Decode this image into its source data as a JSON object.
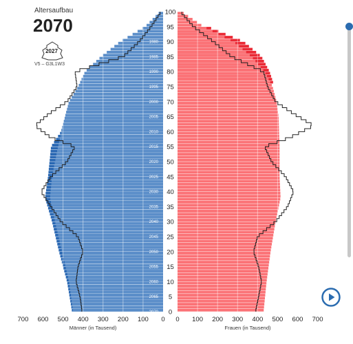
{
  "header": {
    "subtitle": "Altersaufbau",
    "year": "2070",
    "badge_year": "2027",
    "variant": "V5 – G3L1W3"
  },
  "colors": {
    "male": "#5b8ec9",
    "male_dark": "#2a68b3",
    "female": "#fb7276",
    "female_dark": "#ea2a35",
    "outline": "#222222",
    "accent": "#2b6cb0"
  },
  "controls": {
    "slider": "year-slider",
    "play": "play-icon"
  },
  "chart_data": {
    "type": "population-pyramid",
    "title": "Altersaufbau 2070",
    "left_axis_label": "Männer (in Tausend)",
    "right_axis_label": "Frauen (in Tausend)",
    "x_ticks": [
      700,
      600,
      500,
      400,
      300,
      200,
      100,
      0
    ],
    "x_max": 700,
    "age_ticks": [
      0,
      5,
      10,
      15,
      20,
      25,
      30,
      35,
      40,
      45,
      50,
      55,
      60,
      65,
      70,
      75,
      80,
      85,
      90,
      95,
      100
    ],
    "birth_year_labels": [
      {
        "age": 0,
        "label": "2070"
      },
      {
        "age": 5,
        "label": "2065"
      },
      {
        "age": 10,
        "label": "2060"
      },
      {
        "age": 15,
        "label": "2055"
      },
      {
        "age": 20,
        "label": "2050"
      },
      {
        "age": 25,
        "label": "2045"
      },
      {
        "age": 30,
        "label": "2040"
      },
      {
        "age": 35,
        "label": "2035"
      },
      {
        "age": 40,
        "label": "2030"
      },
      {
        "age": 45,
        "label": "2025"
      },
      {
        "age": 50,
        "label": "2020"
      },
      {
        "age": 55,
        "label": "2015"
      },
      {
        "age": 60,
        "label": "2010"
      },
      {
        "age": 65,
        "label": "2005"
      },
      {
        "age": 70,
        "label": "2000"
      },
      {
        "age": 75,
        "label": "1995"
      },
      {
        "age": 80,
        "label": "1990"
      },
      {
        "age": 85,
        "label": "1985"
      },
      {
        "age": 90,
        "label": "1980"
      }
    ],
    "male_profile": [
      [
        0,
        450
      ],
      [
        10,
        470
      ],
      [
        20,
        505
      ],
      [
        30,
        540
      ],
      [
        38,
        565
      ],
      [
        45,
        555
      ],
      [
        55,
        525
      ],
      [
        65,
        490
      ],
      [
        70,
        470
      ],
      [
        75,
        425
      ],
      [
        80,
        390
      ],
      [
        85,
        310
      ],
      [
        90,
        215
      ],
      [
        95,
        90
      ],
      [
        100,
        15
      ]
    ],
    "male_dark_profile": [
      [
        0,
        455
      ],
      [
        10,
        480
      ],
      [
        20,
        520
      ],
      [
        30,
        555
      ],
      [
        38,
        590
      ],
      [
        45,
        575
      ],
      [
        55,
        560
      ],
      [
        60,
        510
      ],
      [
        65,
        490
      ],
      [
        70,
        470
      ]
    ],
    "female_profile": [
      [
        0,
        430
      ],
      [
        10,
        445
      ],
      [
        20,
        465
      ],
      [
        30,
        490
      ],
      [
        38,
        515
      ],
      [
        45,
        510
      ],
      [
        55,
        510
      ],
      [
        65,
        505
      ],
      [
        70,
        495
      ],
      [
        75,
        475
      ],
      [
        80,
        435
      ],
      [
        85,
        370
      ],
      [
        90,
        280
      ],
      [
        95,
        130
      ],
      [
        100,
        20
      ]
    ],
    "female_dark_profile": [
      [
        76,
        480
      ],
      [
        80,
        460
      ],
      [
        85,
        420
      ],
      [
        90,
        330
      ],
      [
        95,
        150
      ]
    ],
    "male_outline_2027": [
      [
        0,
        405
      ],
      [
        5,
        415
      ],
      [
        10,
        435
      ],
      [
        15,
        425
      ],
      [
        20,
        400
      ],
      [
        25,
        425
      ],
      [
        30,
        510
      ],
      [
        35,
        560
      ],
      [
        40,
        610
      ],
      [
        45,
        560
      ],
      [
        50,
        480
      ],
      [
        55,
        440
      ],
      [
        58,
        560
      ],
      [
        62,
        640
      ],
      [
        66,
        570
      ],
      [
        70,
        480
      ],
      [
        75,
        430
      ],
      [
        80,
        440
      ],
      [
        85,
        200
      ],
      [
        90,
        120
      ],
      [
        95,
        60
      ],
      [
        100,
        10
      ]
    ],
    "female_outline_2027": [
      [
        0,
        390
      ],
      [
        5,
        405
      ],
      [
        10,
        420
      ],
      [
        15,
        405
      ],
      [
        20,
        380
      ],
      [
        25,
        400
      ],
      [
        30,
        490
      ],
      [
        35,
        550
      ],
      [
        40,
        580
      ],
      [
        45,
        540
      ],
      [
        50,
        470
      ],
      [
        55,
        435
      ],
      [
        58,
        560
      ],
      [
        62,
        680
      ],
      [
        66,
        580
      ],
      [
        70,
        490
      ],
      [
        75,
        450
      ],
      [
        80,
        430
      ],
      [
        85,
        270
      ],
      [
        90,
        180
      ],
      [
        95,
        80
      ],
      [
        100,
        15
      ]
    ]
  }
}
